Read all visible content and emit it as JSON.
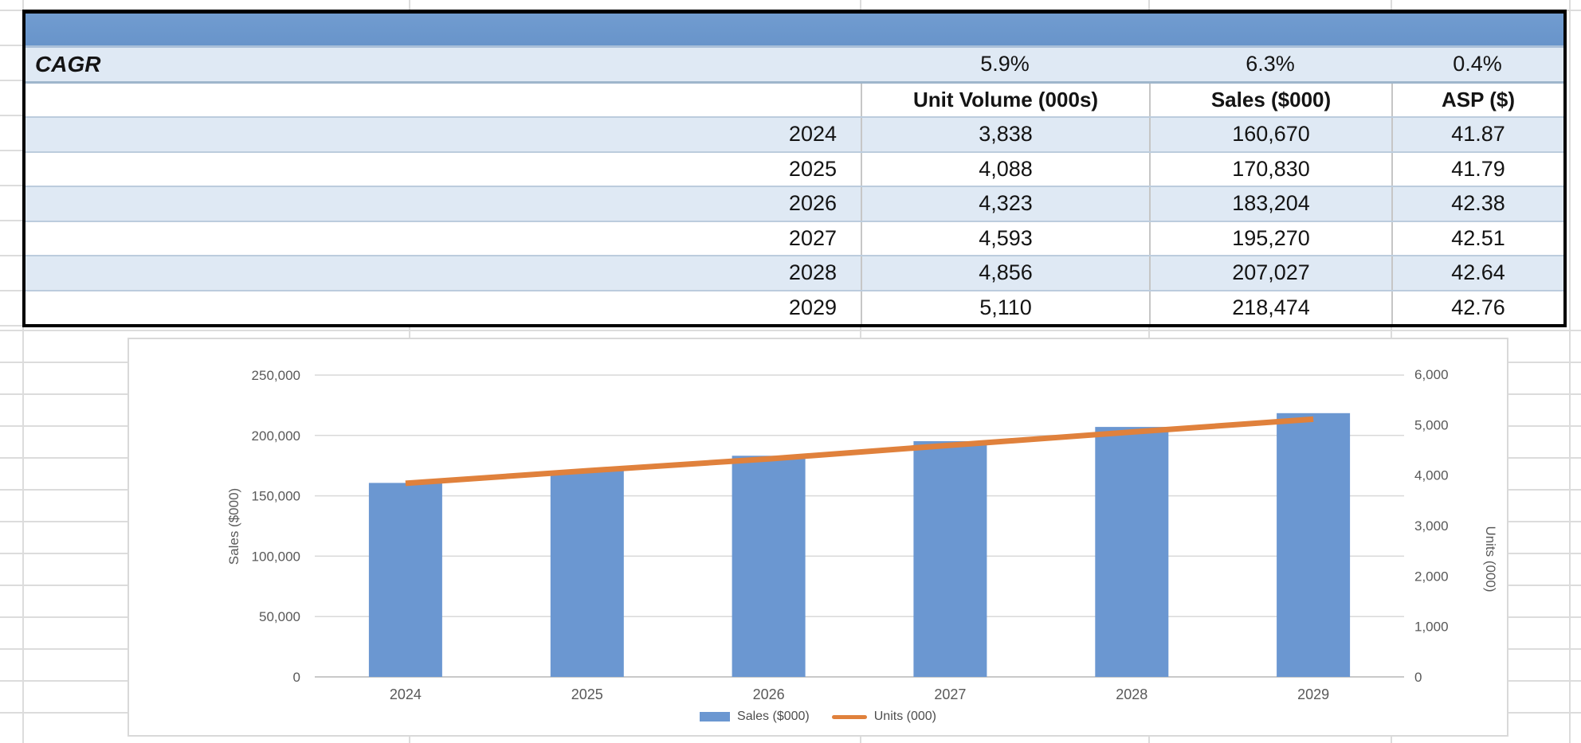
{
  "table": {
    "title_bar_text": "",
    "cagr_label": "CAGR",
    "cagr_values": [
      "5.9%",
      "6.3%",
      "0.4%"
    ],
    "columns": [
      "",
      "Unit Volume (000s)",
      "Sales ($000)",
      "ASP ($)"
    ],
    "rows": [
      [
        "2024",
        "3,838",
        "160,670",
        "41.87"
      ],
      [
        "2025",
        "4,088",
        "170,830",
        "41.79"
      ],
      [
        "2026",
        "4,323",
        "183,204",
        "42.38"
      ],
      [
        "2027",
        "4,593",
        "195,270",
        "42.51"
      ],
      [
        "2028",
        "4,856",
        "207,027",
        "42.64"
      ],
      [
        "2029",
        "5,110",
        "218,474",
        "42.76"
      ]
    ]
  },
  "chart_data": {
    "type": "combo",
    "categories": [
      "2024",
      "2025",
      "2026",
      "2027",
      "2028",
      "2029"
    ],
    "series": [
      {
        "name": "Sales ($000)",
        "type": "bar",
        "axis": "left",
        "color": "#6B97D1",
        "values": [
          160670,
          170830,
          183204,
          195270,
          207027,
          218474
        ]
      },
      {
        "name": "Units (000)",
        "type": "line",
        "axis": "right",
        "color": "#E0813C",
        "values": [
          3838,
          4088,
          4323,
          4593,
          4856,
          5110
        ]
      }
    ],
    "left_axis": {
      "title": "Sales ($000)",
      "min": 0,
      "max": 250000,
      "step": 50000,
      "tick_values": [
        0,
        50000,
        100000,
        150000,
        200000,
        250000
      ],
      "tick_labels": [
        "0",
        "50,000",
        "100,000",
        "150,000",
        "200,000",
        "250,000"
      ]
    },
    "right_axis": {
      "title": "Units (000)",
      "min": 0,
      "max": 6000,
      "step": 1000,
      "tick_values": [
        0,
        1000,
        2000,
        3000,
        4000,
        5000,
        6000
      ],
      "tick_labels": [
        "0",
        "1,000",
        "2,000",
        "3,000",
        "4,000",
        "5,000",
        "6,000"
      ]
    },
    "legend": {
      "position": "bottom",
      "entries": [
        "Sales ($000)",
        "Units (000)"
      ]
    },
    "grid": true
  },
  "colors": {
    "table_title_bar": "#6C99CE",
    "table_band_row": "#DFE9F4",
    "table_border": "#000000",
    "bar_series": "#6B97D1",
    "line_series": "#E0813C",
    "chart_gridline": "#D9D9D9",
    "axis_text": "#595959",
    "sheet_gridline": "#DCDCDC"
  }
}
